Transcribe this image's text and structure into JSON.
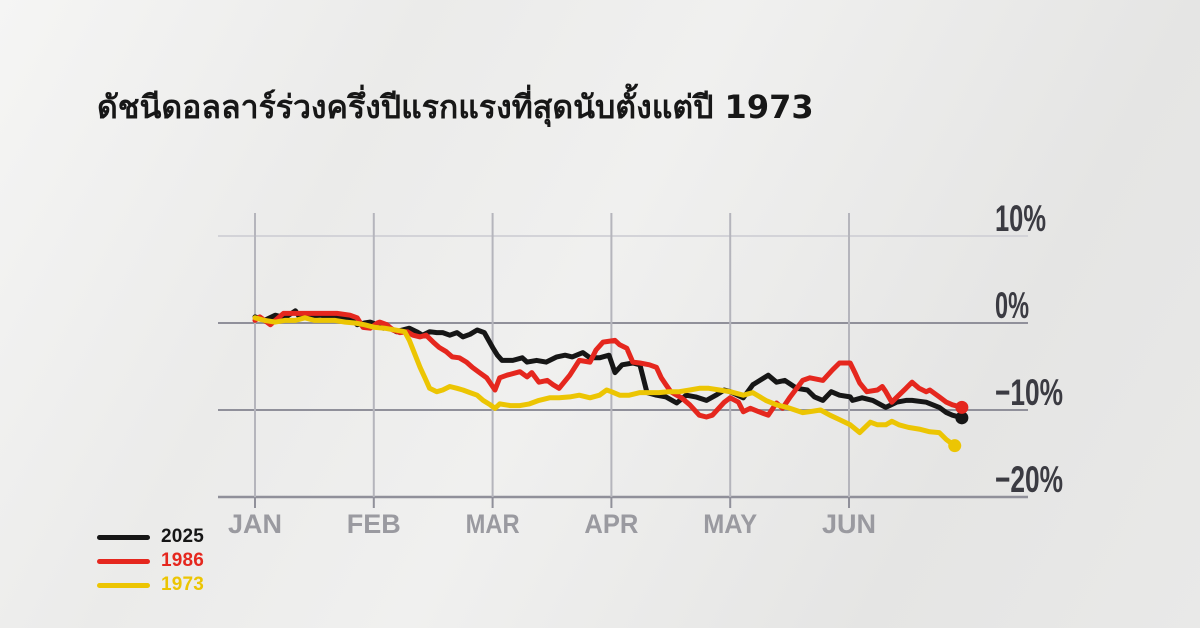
{
  "title": "ดัชนีดอลลาร์ร่วงครึ่งปีแรกแรงที่สุดนับตั้งแต่ปี 1973",
  "colors": {
    "series_2025": "#161616",
    "series_1986": "#e5271e",
    "series_1973": "#ecc503",
    "axis_label_dark": "#3b3b42",
    "axis_label_light": "#9a9aa0",
    "grid_mid": "#90909a",
    "grid_light": "#d3d3d8",
    "grid_vertical": "#b5b5bc"
  },
  "legend": [
    {
      "label": "2025",
      "color": "#161616"
    },
    {
      "label": "1986",
      "color": "#e5271e"
    },
    {
      "label": "1973",
      "color": "#ecc503"
    }
  ],
  "chart_data": {
    "type": "line",
    "title": "ดัชนีดอลลาร์ร่วงครึ่งปีแรกแรงที่สุดนับตั้งแต่ปี 1973",
    "x_unit": "months since Jan 1 (0 = JAN)",
    "y_unit": "percent change year-to-date",
    "xlim": [
      0,
      6.2
    ],
    "ylim": [
      -22,
      12
    ],
    "grid": true,
    "legend_position": "bottom-left",
    "x_tick_labels": [
      "JAN",
      "FEB",
      "MAR",
      "APR",
      "MAY",
      "JUN"
    ],
    "y_ticks": [
      {
        "value": 10,
        "label": "10%"
      },
      {
        "value": 0,
        "label": "0%"
      },
      {
        "value": -10,
        "label": "−10%"
      },
      {
        "value": -20,
        "label": "−20%"
      }
    ],
    "series": [
      {
        "name": "2025",
        "color": "#161616",
        "points": [
          [
            0.0,
            0.7
          ],
          [
            0.08,
            0.3
          ],
          [
            0.17,
            0.9
          ],
          [
            0.25,
            0.6
          ],
          [
            0.34,
            1.4
          ],
          [
            0.38,
            0.6
          ],
          [
            0.46,
            0.8
          ],
          [
            0.55,
            0.9
          ],
          [
            0.63,
            0.7
          ],
          [
            0.71,
            0.7
          ],
          [
            0.8,
            0.6
          ],
          [
            0.86,
            -0.2
          ],
          [
            0.92,
            0.0
          ],
          [
            0.97,
            0.1
          ],
          [
            1.03,
            -0.2
          ],
          [
            1.08,
            -0.6
          ],
          [
            1.13,
            -0.5
          ],
          [
            1.19,
            -1.0
          ],
          [
            1.24,
            -0.8
          ],
          [
            1.3,
            -0.6
          ],
          [
            1.36,
            -1.0
          ],
          [
            1.41,
            -1.4
          ],
          [
            1.47,
            -1.0
          ],
          [
            1.53,
            -1.1
          ],
          [
            1.58,
            -1.1
          ],
          [
            1.64,
            -1.4
          ],
          [
            1.7,
            -1.1
          ],
          [
            1.75,
            -1.6
          ],
          [
            1.81,
            -1.3
          ],
          [
            1.87,
            -0.8
          ],
          [
            1.93,
            -1.1
          ],
          [
            2.0,
            -2.8
          ],
          [
            2.04,
            -3.7
          ],
          [
            2.08,
            -4.3
          ],
          [
            2.17,
            -4.3
          ],
          [
            2.25,
            -4.0
          ],
          [
            2.29,
            -4.5
          ],
          [
            2.37,
            -4.3
          ],
          [
            2.45,
            -4.5
          ],
          [
            2.54,
            -3.9
          ],
          [
            2.61,
            -3.7
          ],
          [
            2.67,
            -3.9
          ],
          [
            2.76,
            -3.4
          ],
          [
            2.82,
            -4.0
          ],
          [
            2.9,
            -4.0
          ],
          [
            2.98,
            -3.7
          ],
          [
            3.03,
            -5.7
          ],
          [
            3.09,
            -4.8
          ],
          [
            3.18,
            -4.6
          ],
          [
            3.24,
            -4.8
          ],
          [
            3.3,
            -8.0
          ],
          [
            3.38,
            -8.3
          ],
          [
            3.46,
            -8.5
          ],
          [
            3.55,
            -9.2
          ],
          [
            3.63,
            -8.3
          ],
          [
            3.71,
            -8.5
          ],
          [
            3.8,
            -8.9
          ],
          [
            3.88,
            -8.3
          ],
          [
            3.95,
            -7.7
          ],
          [
            4.0,
            -7.9
          ],
          [
            4.11,
            -8.6
          ],
          [
            4.19,
            -7.1
          ],
          [
            4.32,
            -6.0
          ],
          [
            4.39,
            -6.8
          ],
          [
            4.46,
            -6.6
          ],
          [
            4.56,
            -7.5
          ],
          [
            4.65,
            -7.7
          ],
          [
            4.71,
            -8.5
          ],
          [
            4.78,
            -8.9
          ],
          [
            4.85,
            -7.9
          ],
          [
            4.92,
            -8.3
          ],
          [
            5.01,
            -8.5
          ],
          [
            5.03,
            -8.9
          ],
          [
            5.11,
            -8.6
          ],
          [
            5.2,
            -8.9
          ],
          [
            5.31,
            -9.7
          ],
          [
            5.4,
            -9.1
          ],
          [
            5.48,
            -8.9
          ],
          [
            5.53,
            -8.9
          ],
          [
            5.65,
            -9.1
          ],
          [
            5.76,
            -9.7
          ],
          [
            5.82,
            -10.3
          ],
          [
            5.87,
            -10.6
          ],
          [
            5.95,
            -10.9
          ]
        ]
      },
      {
        "name": "1986",
        "color": "#e5271e",
        "points": [
          [
            0.0,
            0.3
          ],
          [
            0.04,
            0.7
          ],
          [
            0.13,
            -0.2
          ],
          [
            0.24,
            1.1
          ],
          [
            0.35,
            1.1
          ],
          [
            0.46,
            1.1
          ],
          [
            0.57,
            1.1
          ],
          [
            0.69,
            1.1
          ],
          [
            0.8,
            0.9
          ],
          [
            0.86,
            0.6
          ],
          [
            0.91,
            -0.5
          ],
          [
            0.97,
            -0.6
          ],
          [
            1.03,
            0.0
          ],
          [
            1.05,
            0.1
          ],
          [
            1.11,
            -0.2
          ],
          [
            1.16,
            -0.8
          ],
          [
            1.22,
            -1.1
          ],
          [
            1.28,
            -1.0
          ],
          [
            1.33,
            -1.4
          ],
          [
            1.39,
            -1.6
          ],
          [
            1.44,
            -1.4
          ],
          [
            1.5,
            -2.2
          ],
          [
            1.55,
            -2.8
          ],
          [
            1.61,
            -3.3
          ],
          [
            1.66,
            -3.9
          ],
          [
            1.72,
            -4.0
          ],
          [
            1.78,
            -4.5
          ],
          [
            1.83,
            -5.1
          ],
          [
            1.89,
            -5.7
          ],
          [
            1.95,
            -6.3
          ],
          [
            2.02,
            -7.7
          ],
          [
            2.06,
            -6.3
          ],
          [
            2.12,
            -6.0
          ],
          [
            2.23,
            -5.6
          ],
          [
            2.29,
            -6.2
          ],
          [
            2.33,
            -5.7
          ],
          [
            2.39,
            -6.8
          ],
          [
            2.46,
            -6.6
          ],
          [
            2.51,
            -7.1
          ],
          [
            2.56,
            -7.5
          ],
          [
            2.65,
            -6.0
          ],
          [
            2.73,
            -4.3
          ],
          [
            2.82,
            -4.5
          ],
          [
            2.87,
            -3.1
          ],
          [
            2.93,
            -2.2
          ],
          [
            3.03,
            -2.0
          ],
          [
            3.07,
            -2.5
          ],
          [
            3.13,
            -2.9
          ],
          [
            3.18,
            -4.5
          ],
          [
            3.24,
            -4.6
          ],
          [
            3.32,
            -4.8
          ],
          [
            3.38,
            -5.1
          ],
          [
            3.42,
            -6.3
          ],
          [
            3.46,
            -7.1
          ],
          [
            3.5,
            -7.9
          ],
          [
            3.55,
            -8.3
          ],
          [
            3.59,
            -8.6
          ],
          [
            3.66,
            -9.4
          ],
          [
            3.68,
            -9.7
          ],
          [
            3.74,
            -10.6
          ],
          [
            3.8,
            -10.8
          ],
          [
            3.85,
            -10.6
          ],
          [
            3.91,
            -9.7
          ],
          [
            3.95,
            -9.1
          ],
          [
            4.0,
            -8.6
          ],
          [
            4.07,
            -9.1
          ],
          [
            4.11,
            -10.2
          ],
          [
            4.17,
            -9.8
          ],
          [
            4.24,
            -10.2
          ],
          [
            4.32,
            -10.6
          ],
          [
            4.39,
            -9.2
          ],
          [
            4.44,
            -9.8
          ],
          [
            4.5,
            -8.6
          ],
          [
            4.61,
            -6.6
          ],
          [
            4.67,
            -6.3
          ],
          [
            4.78,
            -6.6
          ],
          [
            4.86,
            -5.4
          ],
          [
            4.92,
            -4.6
          ],
          [
            5.01,
            -4.6
          ],
          [
            5.05,
            -5.7
          ],
          [
            5.09,
            -6.9
          ],
          [
            5.15,
            -7.9
          ],
          [
            5.24,
            -7.7
          ],
          [
            5.28,
            -7.3
          ],
          [
            5.31,
            -7.9
          ],
          [
            5.36,
            -9.1
          ],
          [
            5.42,
            -8.3
          ],
          [
            5.48,
            -7.5
          ],
          [
            5.53,
            -6.8
          ],
          [
            5.59,
            -7.5
          ],
          [
            5.65,
            -7.9
          ],
          [
            5.68,
            -7.7
          ],
          [
            5.76,
            -8.5
          ],
          [
            5.82,
            -9.1
          ],
          [
            5.87,
            -9.4
          ],
          [
            5.95,
            -9.7
          ]
        ]
      },
      {
        "name": "1973",
        "color": "#ecc503",
        "points": [
          [
            0.0,
            0.6
          ],
          [
            0.08,
            0.3
          ],
          [
            0.17,
            0.1
          ],
          [
            0.25,
            0.3
          ],
          [
            0.34,
            0.3
          ],
          [
            0.42,
            0.6
          ],
          [
            0.5,
            0.3
          ],
          [
            0.59,
            0.3
          ],
          [
            0.67,
            0.3
          ],
          [
            0.76,
            0.1
          ],
          [
            0.84,
            0.0
          ],
          [
            0.92,
            -0.2
          ],
          [
            1.01,
            -0.5
          ],
          [
            1.09,
            -0.6
          ],
          [
            1.18,
            -0.8
          ],
          [
            1.26,
            -1.0
          ],
          [
            1.3,
            -2.0
          ],
          [
            1.34,
            -3.4
          ],
          [
            1.39,
            -5.1
          ],
          [
            1.43,
            -6.3
          ],
          [
            1.47,
            -7.5
          ],
          [
            1.53,
            -7.9
          ],
          [
            1.58,
            -7.7
          ],
          [
            1.64,
            -7.3
          ],
          [
            1.7,
            -7.5
          ],
          [
            1.75,
            -7.7
          ],
          [
            1.81,
            -8.0
          ],
          [
            1.87,
            -8.3
          ],
          [
            1.92,
            -8.9
          ],
          [
            1.98,
            -9.4
          ],
          [
            2.02,
            -9.8
          ],
          [
            2.06,
            -9.3
          ],
          [
            2.15,
            -9.5
          ],
          [
            2.23,
            -9.5
          ],
          [
            2.31,
            -9.3
          ],
          [
            2.39,
            -8.9
          ],
          [
            2.48,
            -8.6
          ],
          [
            2.56,
            -8.6
          ],
          [
            2.65,
            -8.5
          ],
          [
            2.73,
            -8.3
          ],
          [
            2.82,
            -8.6
          ],
          [
            2.9,
            -8.3
          ],
          [
            2.96,
            -7.7
          ],
          [
            3.0,
            -7.9
          ],
          [
            3.07,
            -8.3
          ],
          [
            3.15,
            -8.3
          ],
          [
            3.24,
            -8.0
          ],
          [
            3.32,
            -8.0
          ],
          [
            3.4,
            -8.0
          ],
          [
            3.48,
            -7.9
          ],
          [
            3.57,
            -7.9
          ],
          [
            3.66,
            -7.7
          ],
          [
            3.74,
            -7.5
          ],
          [
            3.82,
            -7.5
          ],
          [
            3.91,
            -7.7
          ],
          [
            4.0,
            -7.9
          ],
          [
            4.11,
            -8.3
          ],
          [
            4.19,
            -8.0
          ],
          [
            4.3,
            -8.9
          ],
          [
            4.39,
            -9.4
          ],
          [
            4.48,
            -9.7
          ],
          [
            4.61,
            -10.3
          ],
          [
            4.67,
            -10.2
          ],
          [
            4.76,
            -10.0
          ],
          [
            4.84,
            -10.6
          ],
          [
            4.92,
            -11.1
          ],
          [
            5.01,
            -11.7
          ],
          [
            5.09,
            -12.6
          ],
          [
            5.18,
            -11.4
          ],
          [
            5.24,
            -11.7
          ],
          [
            5.31,
            -11.7
          ],
          [
            5.36,
            -11.3
          ],
          [
            5.42,
            -11.7
          ],
          [
            5.5,
            -12.0
          ],
          [
            5.59,
            -12.2
          ],
          [
            5.68,
            -12.5
          ],
          [
            5.76,
            -12.6
          ],
          [
            5.82,
            -13.4
          ],
          [
            5.89,
            -14.1
          ]
        ]
      }
    ]
  }
}
